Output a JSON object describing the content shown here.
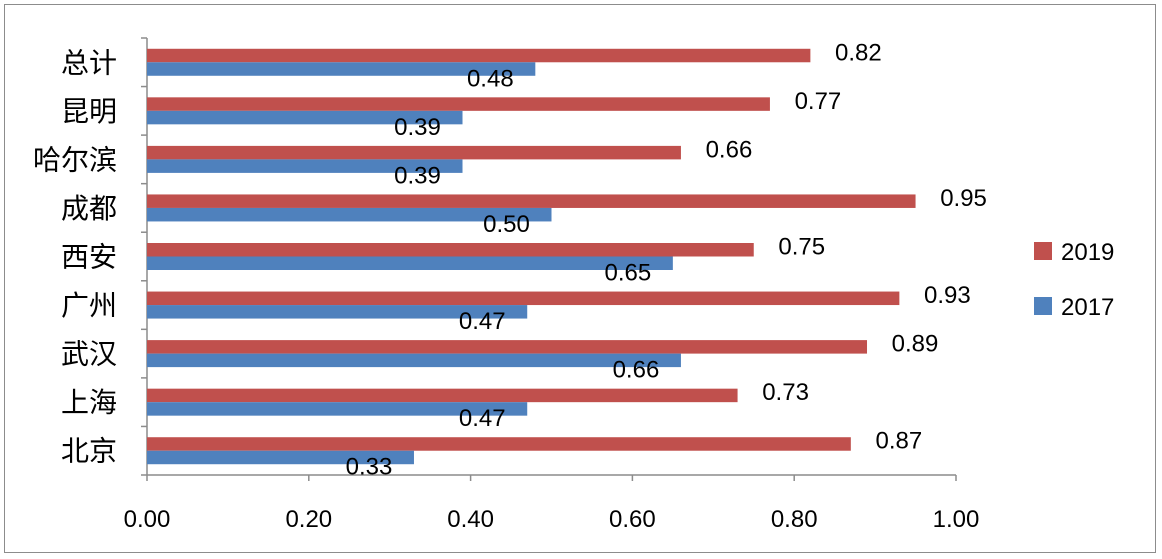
{
  "chart_data": {
    "type": "bar",
    "orientation": "horizontal",
    "categories": [
      "总计",
      "昆明",
      "哈尔滨",
      "成都",
      "西安",
      "广州",
      "武汉",
      "上海",
      "北京"
    ],
    "series": [
      {
        "name": "2019",
        "color": "#c0504d",
        "values": [
          0.82,
          0.77,
          0.66,
          0.95,
          0.75,
          0.93,
          0.89,
          0.73,
          0.87
        ],
        "labels": [
          "0.82",
          "0.77",
          "0.66",
          "0.95",
          "0.75",
          "0.93",
          "0.89",
          "0.73",
          "0.87"
        ]
      },
      {
        "name": "2017",
        "color": "#4f81bd",
        "values": [
          0.48,
          0.39,
          0.39,
          0.5,
          0.65,
          0.47,
          0.66,
          0.47,
          0.33
        ],
        "labels": [
          "0.48",
          "0.39",
          "0.39",
          "0.50",
          "0.65",
          "0.47",
          "0.66",
          "0.47",
          "0.33"
        ]
      }
    ],
    "x_ticks": [
      "0.00",
      "0.20",
      "0.40",
      "0.60",
      "0.80",
      "1.00"
    ],
    "xlim": [
      0,
      1
    ],
    "grid": false,
    "legend_position": "right"
  }
}
